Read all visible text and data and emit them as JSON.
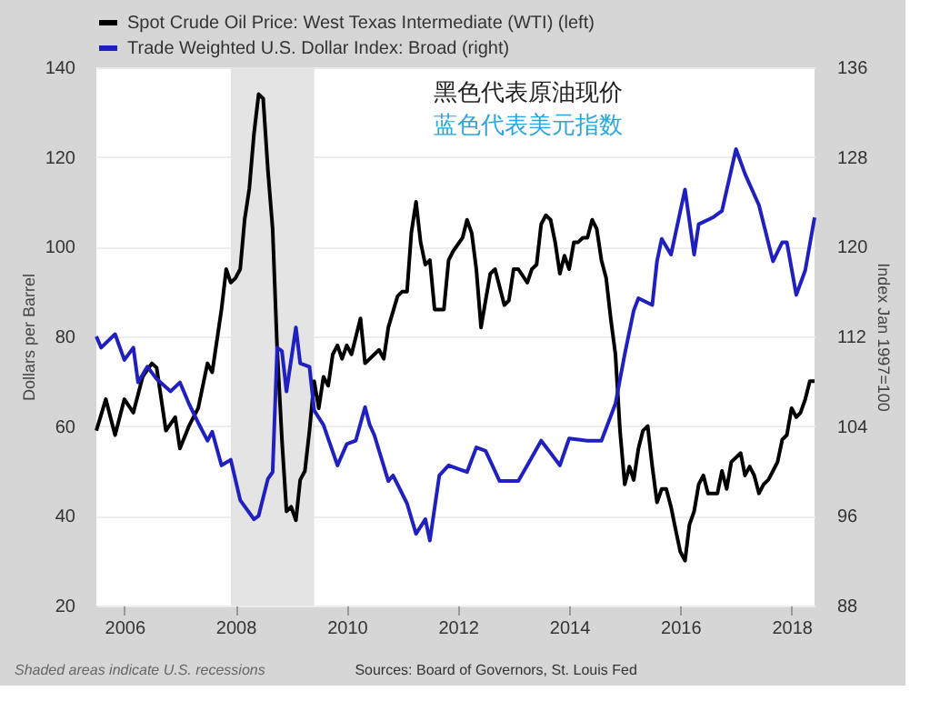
{
  "chart_data": {
    "type": "line",
    "ylabel": "Dollars per Barrel",
    "y2label": "Index Jan 1997=100",
    "annotations": [
      "黑色代表原油现价",
      "蓝色代表美元指数",
      "Shaded areas indicate U.S. recessions",
      "Sources: Board of Governors, St. Louis Fed"
    ],
    "xlim": [
      "2005-07",
      "2018-06"
    ],
    "xticks": [
      "2006",
      "2008",
      "2010",
      "2012",
      "2014",
      "2016",
      "2018"
    ],
    "ylim": [
      20,
      140
    ],
    "yticks": [
      20,
      40,
      60,
      80,
      100,
      120,
      140
    ],
    "y2lim": [
      88,
      136
    ],
    "y2ticks": [
      88,
      96,
      104,
      112,
      120,
      128,
      136
    ],
    "grid": "y",
    "legend": "top left",
    "line_style": "solid",
    "marker": "none",
    "bands": [
      {
        "axis": "x",
        "from": "2007-12",
        "to": "2009-06",
        "color": "#e4e4e4"
      }
    ],
    "series": [
      {
        "name": "Spot Crude Oil Price: West Texas Intermediate (WTI) (left)",
        "color": "#000000",
        "x": [
          "2005-07",
          "2005-09",
          "2005-11",
          "2006-01",
          "2006-03",
          "2006-05",
          "2006-07",
          "2006-08",
          "2006-10",
          "2006-12",
          "2007-01",
          "2007-03",
          "2007-05",
          "2007-07",
          "2007-08",
          "2007-10",
          "2007-11",
          "2007-12",
          "2008-01",
          "2008-02",
          "2008-03",
          "2008-04",
          "2008-05",
          "2008-06",
          "2008-07",
          "2008-08",
          "2008-09",
          "2008-10",
          "2008-11",
          "2008-12",
          "2009-01",
          "2009-02",
          "2009-03",
          "2009-04",
          "2009-05",
          "2009-06",
          "2009-07",
          "2009-08",
          "2009-09",
          "2009-10",
          "2009-11",
          "2009-12",
          "2010-01",
          "2010-02",
          "2010-04",
          "2010-05",
          "2010-07",
          "2010-08",
          "2010-09",
          "2010-10",
          "2010-12",
          "2011-01",
          "2011-02",
          "2011-03",
          "2011-04",
          "2011-05",
          "2011-06",
          "2011-07",
          "2011-08",
          "2011-09",
          "2011-10",
          "2011-11",
          "2011-12",
          "2012-02",
          "2012-03",
          "2012-04",
          "2012-05",
          "2012-06",
          "2012-07",
          "2012-08",
          "2012-09",
          "2012-11",
          "2012-12",
          "2013-01",
          "2013-02",
          "2013-04",
          "2013-05",
          "2013-06",
          "2013-07",
          "2013-08",
          "2013-09",
          "2013-10",
          "2013-11",
          "2013-12",
          "2014-01",
          "2014-02",
          "2014-03",
          "2014-04",
          "2014-05",
          "2014-06",
          "2014-07",
          "2014-08",
          "2014-09",
          "2014-10",
          "2014-11",
          "2014-12",
          "2015-01",
          "2015-02",
          "2015-03",
          "2015-04",
          "2015-05",
          "2015-06",
          "2015-07",
          "2015-08",
          "2015-09",
          "2015-10",
          "2015-11",
          "2015-12",
          "2016-01",
          "2016-02",
          "2016-03",
          "2016-04",
          "2016-05",
          "2016-06",
          "2016-07",
          "2016-08",
          "2016-09",
          "2016-10",
          "2016-11",
          "2016-12",
          "2017-01",
          "2017-02",
          "2017-03",
          "2017-04",
          "2017-05",
          "2017-06",
          "2017-07",
          "2017-08",
          "2017-09",
          "2017-10",
          "2017-11",
          "2017-12",
          "2018-01",
          "2018-02",
          "2018-03",
          "2018-04",
          "2018-05",
          "2018-06"
        ],
        "values": [
          59,
          66,
          58,
          66,
          63,
          71,
          74,
          73,
          59,
          62,
          55,
          60,
          64,
          74,
          72,
          86,
          95,
          92,
          93,
          95,
          106,
          113,
          125,
          134,
          133,
          117,
          104,
          77,
          57,
          41,
          42,
          39,
          48,
          50,
          59,
          70,
          64,
          71,
          69,
          76,
          78,
          75,
          78,
          76,
          84,
          74,
          76,
          77,
          75,
          82,
          89,
          90,
          90,
          103,
          110,
          101,
          96,
          97,
          86,
          86,
          86,
          97,
          99,
          102,
          106,
          103,
          95,
          82,
          88,
          94,
          95,
          87,
          88,
          95,
          95,
          92,
          95,
          96,
          105,
          107,
          106,
          101,
          94,
          98,
          95,
          101,
          101,
          102,
          102,
          106,
          104,
          97,
          93,
          84,
          76,
          59,
          47,
          51,
          48,
          55,
          59,
          60,
          51,
          43,
          46,
          46,
          42,
          37,
          32,
          30,
          38,
          41,
          47,
          49,
          45,
          45,
          45,
          50,
          46,
          52,
          53,
          54,
          49,
          51,
          49,
          45,
          47,
          48,
          50,
          52,
          57,
          58,
          64,
          62,
          63,
          66,
          70,
          70
        ]
      },
      {
        "name": "Trade Weighted U.S. Dollar Index: Broad (right)",
        "color": "#2020c0",
        "axis": "y2",
        "x": [
          "2005-07",
          "2005-08",
          "2005-11",
          "2006-01",
          "2006-03",
          "2006-04",
          "2006-06",
          "2006-08",
          "2006-11",
          "2007-01",
          "2007-03",
          "2007-05",
          "2007-07",
          "2007-08",
          "2007-10",
          "2007-12",
          "2008-02",
          "2008-05",
          "2008-06",
          "2008-08",
          "2008-09",
          "2008-10",
          "2008-11",
          "2008-12",
          "2009-02",
          "2009-03",
          "2009-05",
          "2009-06",
          "2009-08",
          "2009-11",
          "2010-01",
          "2010-03",
          "2010-05",
          "2010-06",
          "2010-07",
          "2010-10",
          "2010-11",
          "2011-02",
          "2011-04",
          "2011-06",
          "2011-07",
          "2011-09",
          "2011-11",
          "2012-03",
          "2012-05",
          "2012-07",
          "2012-10",
          "2013-02",
          "2013-04",
          "2013-07",
          "2013-09",
          "2013-11",
          "2014-01",
          "2014-05",
          "2014-08",
          "2014-11",
          "2015-01",
          "2015-03",
          "2015-04",
          "2015-07",
          "2015-08",
          "2015-09",
          "2015-11",
          "2016-02",
          "2016-04",
          "2016-05",
          "2016-08",
          "2016-10",
          "2017-01",
          "2017-03",
          "2017-06",
          "2017-09",
          "2017-11",
          "2017-12",
          "2018-02",
          "2018-04",
          "2018-06"
        ],
        "values": [
          112.0,
          111.0,
          112.2,
          109.9,
          111.0,
          107.9,
          109.3,
          108.2,
          107.1,
          107.9,
          106.0,
          104.3,
          102.7,
          103.5,
          100.5,
          101.0,
          97.4,
          95.7,
          96.0,
          99.3,
          99.9,
          111.0,
          110.7,
          107.1,
          112.8,
          109.6,
          109.3,
          105.4,
          104.1,
          100.5,
          102.4,
          102.7,
          105.7,
          104.1,
          103.2,
          99.1,
          99.6,
          97.1,
          94.4,
          95.7,
          93.8,
          99.6,
          100.5,
          99.9,
          102.1,
          101.8,
          99.1,
          99.1,
          100.5,
          102.7,
          101.6,
          100.5,
          102.9,
          102.7,
          102.7,
          106.0,
          110.4,
          114.3,
          115.4,
          114.8,
          118.7,
          120.7,
          119.3,
          125.1,
          119.3,
          122.0,
          122.6,
          123.2,
          128.7,
          126.5,
          123.7,
          118.7,
          120.4,
          120.4,
          115.7,
          117.9,
          122.6
        ]
      }
    ]
  }
}
